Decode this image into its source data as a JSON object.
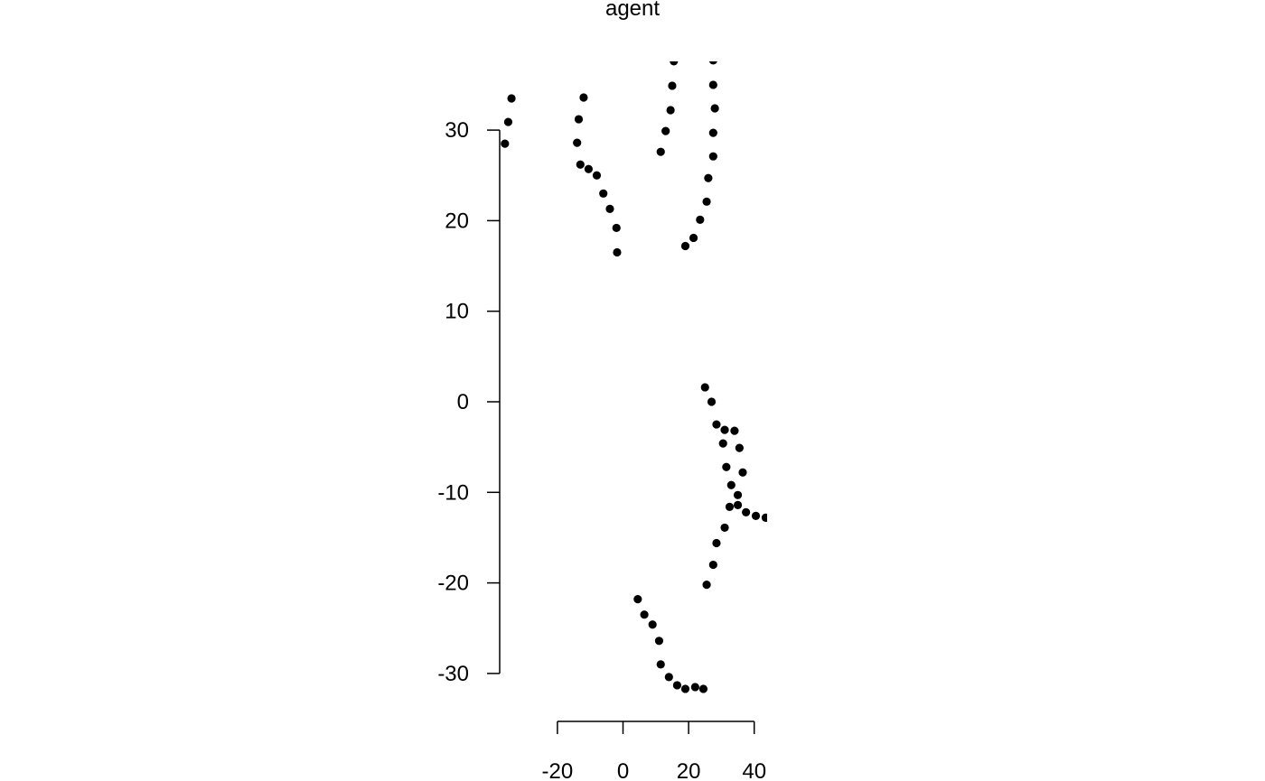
{
  "chart_data": {
    "type": "scatter",
    "title": "agent",
    "xlabel": "",
    "ylabel": "",
    "grid": false,
    "point_color": "#000000",
    "x_ticks": [
      -20,
      0,
      20,
      40
    ],
    "y_ticks": [
      -30,
      -20,
      -10,
      0,
      10,
      20,
      30
    ],
    "x_tick_labels": [
      "-20",
      "0",
      "20",
      "40"
    ],
    "y_tick_labels": [
      "-30",
      "-20",
      "-10",
      "0",
      "10",
      "20",
      "30"
    ],
    "points": [
      {
        "x": -36.0,
        "y": 28.5
      },
      {
        "x": -35.0,
        "y": 30.9
      },
      {
        "x": -34.0,
        "y": 33.5
      },
      {
        "x": -14.0,
        "y": 28.6
      },
      {
        "x": -13.5,
        "y": 31.2
      },
      {
        "x": -12.0,
        "y": 33.6
      },
      {
        "x": -13.0,
        "y": 26.2
      },
      {
        "x": -10.5,
        "y": 25.7
      },
      {
        "x": -8.0,
        "y": 25.0
      },
      {
        "x": -6.0,
        "y": 23.0
      },
      {
        "x": -4.0,
        "y": 21.3
      },
      {
        "x": -2.0,
        "y": 19.2
      },
      {
        "x": -1.8,
        "y": 16.5
      },
      {
        "x": 11.5,
        "y": 27.6
      },
      {
        "x": 13.0,
        "y": 29.9
      },
      {
        "x": 14.5,
        "y": 32.2
      },
      {
        "x": 15.0,
        "y": 34.9
      },
      {
        "x": 15.5,
        "y": 37.6
      },
      {
        "x": 27.5,
        "y": 37.7
      },
      {
        "x": 27.5,
        "y": 35.0
      },
      {
        "x": 28.0,
        "y": 32.4
      },
      {
        "x": 27.5,
        "y": 29.7
      },
      {
        "x": 27.5,
        "y": 27.1
      },
      {
        "x": 26.0,
        "y": 24.7
      },
      {
        "x": 25.5,
        "y": 22.1
      },
      {
        "x": 23.5,
        "y": 20.1
      },
      {
        "x": 21.5,
        "y": 18.1
      },
      {
        "x": 19.0,
        "y": 17.2
      },
      {
        "x": 25.0,
        "y": 1.6
      },
      {
        "x": 27.0,
        "y": 0.0
      },
      {
        "x": 28.5,
        "y": -2.5
      },
      {
        "x": 31.0,
        "y": -3.1
      },
      {
        "x": 34.0,
        "y": -3.2
      },
      {
        "x": 30.5,
        "y": -4.6
      },
      {
        "x": 35.5,
        "y": -5.1
      },
      {
        "x": 31.5,
        "y": -7.2
      },
      {
        "x": 36.5,
        "y": -7.8
      },
      {
        "x": 33.0,
        "y": -9.2
      },
      {
        "x": 35.0,
        "y": -10.3
      },
      {
        "x": 35.0,
        "y": -11.4
      },
      {
        "x": 32.5,
        "y": -11.6
      },
      {
        "x": 37.5,
        "y": -12.2
      },
      {
        "x": 40.5,
        "y": -12.6
      },
      {
        "x": 43.5,
        "y": -12.8
      },
      {
        "x": 31.0,
        "y": -13.9
      },
      {
        "x": 28.5,
        "y": -15.6
      },
      {
        "x": 27.5,
        "y": -18.0
      },
      {
        "x": 25.5,
        "y": -20.2
      },
      {
        "x": 4.5,
        "y": -21.8
      },
      {
        "x": 6.5,
        "y": -23.5
      },
      {
        "x": 9.0,
        "y": -24.6
      },
      {
        "x": 11.0,
        "y": -26.4
      },
      {
        "x": 11.5,
        "y": -29.0
      },
      {
        "x": 14.0,
        "y": -30.4
      },
      {
        "x": 16.5,
        "y": -31.3
      },
      {
        "x": 19.0,
        "y": -31.7
      },
      {
        "x": 22.0,
        "y": -31.5
      },
      {
        "x": 24.5,
        "y": -31.7
      }
    ]
  }
}
